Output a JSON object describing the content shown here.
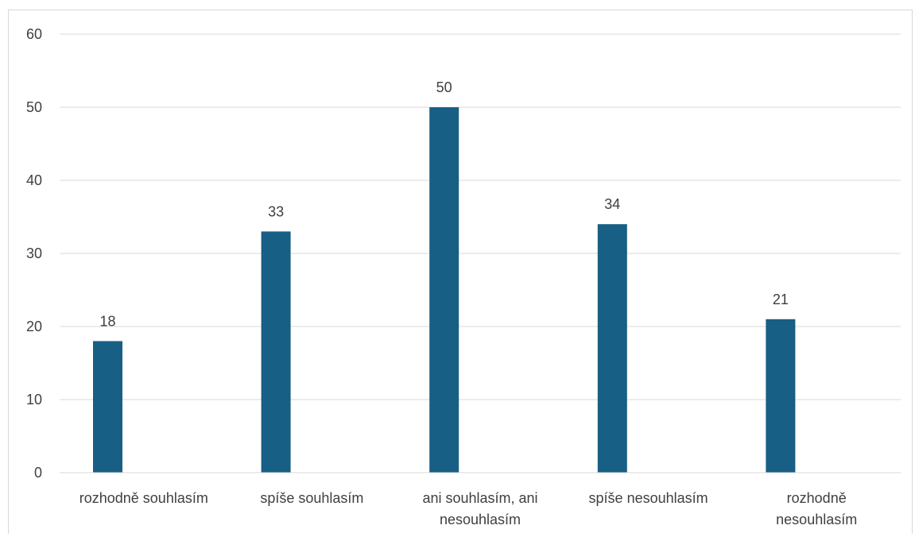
{
  "chart_data": {
    "type": "bar",
    "categories": [
      "rozhodně souhlasím",
      "spíše souhlasím",
      "ani souhlasím, ani nesouhlasím",
      "spíše nesouhlasím",
      "rozhodně nesouhlasím"
    ],
    "category_lines": [
      [
        "rozhodně souhlasím"
      ],
      [
        "spíše souhlasím"
      ],
      [
        "ani souhlasím, ani",
        "nesouhlasím"
      ],
      [
        "spíše nesouhlasím"
      ],
      [
        "rozhodně",
        "nesouhlasím"
      ]
    ],
    "values": [
      18,
      33,
      50,
      34,
      21
    ],
    "data_labels": [
      "18",
      "33",
      "50",
      "34",
      "21"
    ],
    "ylim": [
      0,
      60
    ],
    "yticks": [
      0,
      10,
      20,
      30,
      40,
      50,
      60
    ],
    "grid": true,
    "bar_color": "#175f84",
    "grid_color": "#d9d9d9",
    "title": "",
    "xlabel": "",
    "ylabel": ""
  }
}
